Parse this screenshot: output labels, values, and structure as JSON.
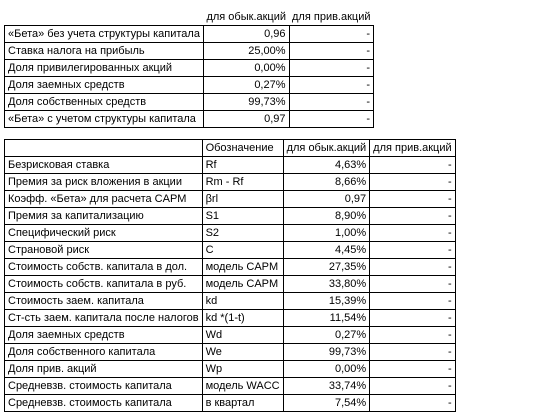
{
  "table1": {
    "headers": {
      "common": "для обык.акций",
      "preferred": "для прив.акций"
    },
    "rows": [
      {
        "label": "«Бета» без учета структуры капитала",
        "common": "0,96",
        "preferred": "-"
      },
      {
        "label": "Ставка налога на прибыль",
        "common": "25,00%",
        "preferred": "-"
      },
      {
        "label": "Доля привилегированных акций",
        "common": "0,00%",
        "preferred": "-"
      },
      {
        "label": "Доля заемных средств",
        "common": "0,27%",
        "preferred": "-"
      },
      {
        "label": "Доля собственных средств",
        "common": "99,73%",
        "preferred": "-"
      },
      {
        "label": "«Бета» с учетом структуры капитала",
        "common": "0,97",
        "preferred": "-"
      }
    ]
  },
  "table2": {
    "headers": {
      "designation": "Обозначение",
      "common": "для обык.акций",
      "preferred": "для прив.акций"
    },
    "rows": [
      {
        "label": "Безрисковая ставка",
        "designation": "Rf",
        "common": "4,63%",
        "preferred": "-"
      },
      {
        "label": "Премия за риск вложения в акции",
        "designation": "Rm - Rf",
        "common": "8,66%",
        "preferred": "-"
      },
      {
        "label": "Коэфф. «Бета» для расчета CAPM",
        "designation": "βrl",
        "common": "0,97",
        "preferred": "-"
      },
      {
        "label": "Премия за капитализацию",
        "designation": "S1",
        "common": "8,90%",
        "preferred": "-"
      },
      {
        "label": "Специфический риск",
        "designation": "S2",
        "common": "1,00%",
        "preferred": "-"
      },
      {
        "label": "Страновой риск",
        "designation": "C",
        "common": "4,45%",
        "preferred": "-"
      },
      {
        "label": "Стоимость собств. капитала в дол.",
        "designation": "модель CAPM",
        "common": "27,35%",
        "preferred": "-"
      },
      {
        "label": "Стоимость собств. капитала в руб.",
        "designation": "модель CAPM",
        "common": "33,80%",
        "preferred": "-"
      },
      {
        "label": "Стоимость заем. капитала",
        "designation": "kd",
        "common": "15,39%",
        "preferred": "-"
      },
      {
        "label": "Ст-сть заем. капитала после налогов",
        "designation": "kd *(1-t)",
        "common": "11,54%",
        "preferred": "-"
      },
      {
        "label": "Доля заемных средств",
        "designation": "Wd",
        "common": "0,27%",
        "preferred": "-"
      },
      {
        "label": "Доля собственного капитала",
        "designation": "We",
        "common": "99,73%",
        "preferred": "-"
      },
      {
        "label": "Доля прив. акций",
        "designation": "Wp",
        "common": "0,00%",
        "preferred": "-"
      },
      {
        "label": "Средневзв. стоимость капитала",
        "designation": "модель WACC",
        "common": "33,74%",
        "preferred": "-"
      },
      {
        "label": "Средневзв. стоимость капитала",
        "designation": "в квартал",
        "common": "7,54%",
        "preferred": "-"
      }
    ]
  }
}
